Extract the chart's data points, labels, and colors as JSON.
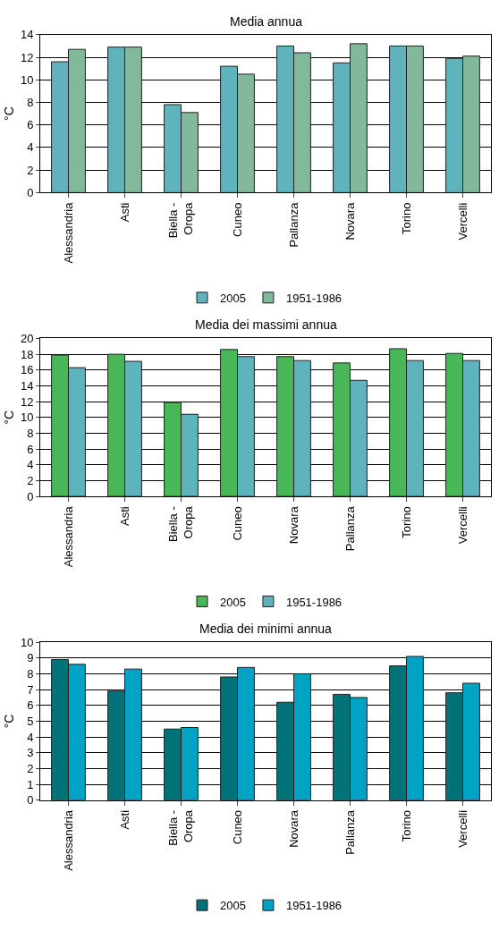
{
  "chart_data": [
    {
      "type": "bar",
      "title": "Media annua",
      "ylabel": "°C",
      "categories": [
        "Alessandria",
        "Asti",
        "Biella - Oropa",
        "Cuneo",
        "Pallanza",
        "Novara",
        "Torino",
        "Vercelli"
      ],
      "series": [
        {
          "name": "2005",
          "color": "#5fb3bd",
          "values": [
            11.6,
            12.9,
            7.8,
            11.2,
            13.0,
            11.5,
            13.0,
            11.9
          ]
        },
        {
          "name": "1951-1986",
          "color": "#82b99a",
          "values": [
            12.7,
            12.9,
            7.1,
            10.5,
            12.4,
            13.2,
            13.0,
            12.1
          ]
        }
      ],
      "ylim": [
        0,
        14
      ],
      "yticks": [
        0,
        2,
        4,
        6,
        8,
        10,
        12,
        14
      ],
      "grid": "y",
      "legend": "bottom"
    },
    {
      "type": "bar",
      "title": "Media dei massimi annua",
      "ylabel": "°C",
      "categories": [
        "Alessandria",
        "Asti",
        "Biella - Oropa",
        "Cuneo",
        "Novara",
        "Pallanza",
        "Torino",
        "Vercelli"
      ],
      "series": [
        {
          "name": "2005",
          "color": "#47b757",
          "values": [
            17.9,
            18.0,
            11.9,
            18.6,
            17.7,
            16.9,
            18.7,
            18.1
          ]
        },
        {
          "name": "1951-1986",
          "color": "#5fb3bd",
          "values": [
            16.3,
            17.1,
            10.4,
            17.7,
            17.2,
            14.7,
            17.2,
            17.2
          ]
        }
      ],
      "ylim": [
        0,
        20
      ],
      "yticks": [
        0,
        2,
        4,
        6,
        8,
        10,
        12,
        14,
        16,
        18,
        20
      ],
      "grid": "y",
      "legend": "bottom"
    },
    {
      "type": "bar",
      "title": "Media dei minimi annua",
      "ylabel": "°C",
      "categories": [
        "Alessandria",
        "Asti",
        "Biella - Oropa",
        "Cuneo",
        "Novara",
        "Pallanza",
        "Torino",
        "Vercelli"
      ],
      "series": [
        {
          "name": "2005",
          "color": "#007278",
          "values": [
            8.9,
            6.9,
            4.5,
            7.8,
            6.2,
            6.7,
            8.5,
            6.8
          ]
        },
        {
          "name": "1951-1986",
          "color": "#00a3c4",
          "values": [
            8.6,
            8.3,
            4.6,
            8.4,
            8.0,
            6.5,
            9.1,
            7.4
          ]
        }
      ],
      "ylim": [
        0,
        10
      ],
      "yticks": [
        0,
        1,
        2,
        3,
        4,
        5,
        6,
        7,
        8,
        9,
        10
      ],
      "grid": "y",
      "legend": "bottom"
    }
  ]
}
